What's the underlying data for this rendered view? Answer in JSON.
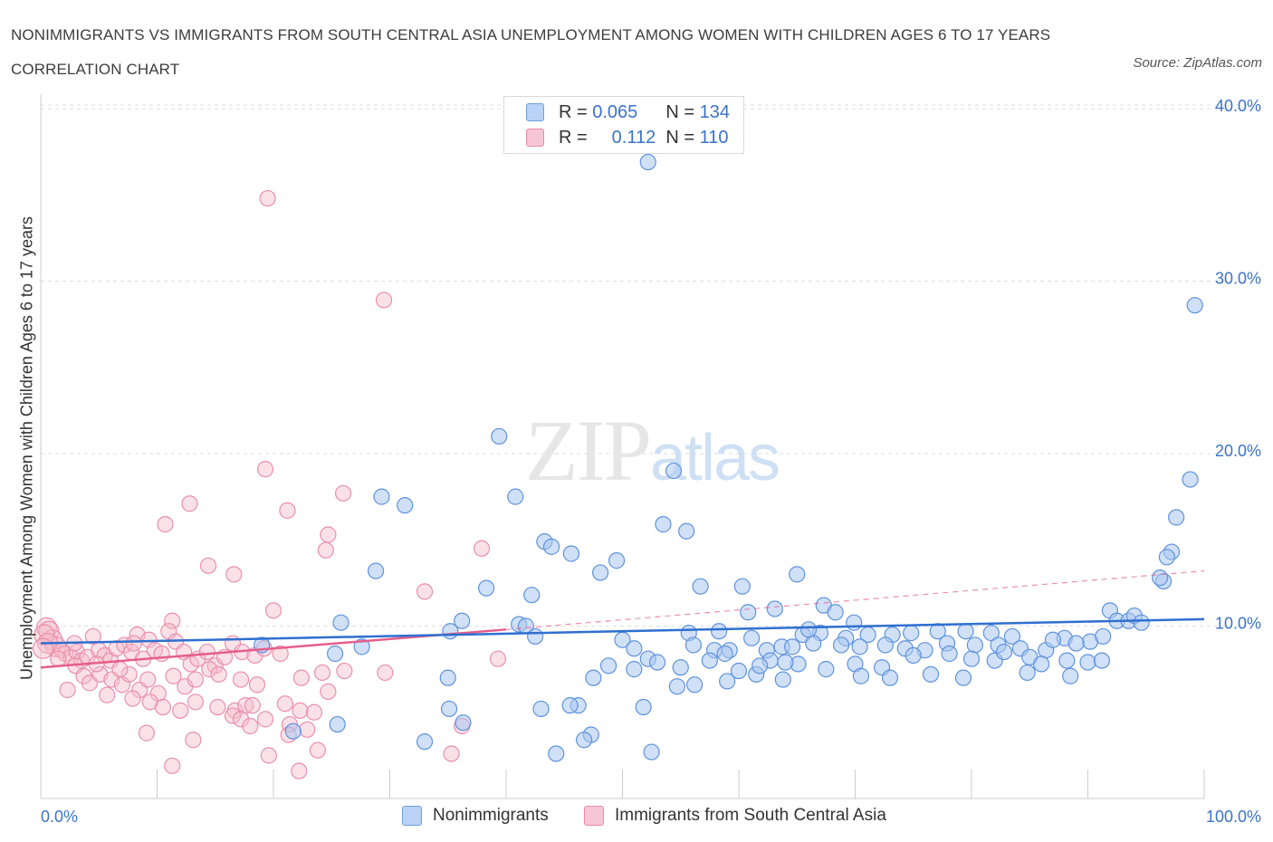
{
  "header": {
    "title": "NONIMMIGRANTS VS IMMIGRANTS FROM SOUTH CENTRAL ASIA UNEMPLOYMENT AMONG WOMEN WITH CHILDREN AGES 6 TO 17 YEARS CORRELATION CHART",
    "source": "Source: ZipAtlas.com"
  },
  "legend": {
    "r_label": "R =",
    "n_label": "N =",
    "rows": [
      {
        "r": "0.065",
        "n": "134"
      },
      {
        "r": "0.112",
        "n": "110"
      }
    ]
  },
  "bottom_legend": [
    "Nonimmigrants",
    "Immigrants from South Central Asia"
  ],
  "colors": {
    "blue_fill": "#a9c6f0",
    "blue_stroke": "#5f93dc",
    "blue_line": "#2f6fd0",
    "pink_fill": "#f5bccd",
    "pink_stroke": "#e98fae",
    "pink_line": "#e45e8c",
    "grid": "#dddddd",
    "accent_text": "#3b73c9"
  },
  "chart_data": {
    "type": "scatter",
    "title": "NONIMMIGRANTS VS IMMIGRANTS FROM SOUTH CENTRAL ASIA UNEMPLOYMENT AMONG WOMEN WITH CHILDREN AGES 6 TO 17 YEARS CORRELATION CHART",
    "xlabel": "",
    "ylabel": "Unemployment Among Women with Children Ages 6 to 17 years",
    "xlim": [
      0,
      100
    ],
    "ylim": [
      0,
      40
    ],
    "x_tick_labels": [
      "0.0%",
      "100.0%"
    ],
    "y_ticks": [
      10,
      20,
      30,
      40
    ],
    "y_tick_labels": [
      "10.0%",
      "20.0%",
      "30.0%",
      "40.0%"
    ],
    "grid": true,
    "legend_position": "top-center",
    "series": [
      {
        "name": "Nonimmigrants",
        "r": 0.065,
        "n": 134,
        "trend": {
          "x": [
            0,
            100
          ],
          "y": [
            9.0,
            10.4
          ]
        },
        "points": [
          [
            52.2,
            36.9
          ],
          [
            99.2,
            28.6
          ],
          [
            39.4,
            21.0
          ],
          [
            54.4,
            19.0
          ],
          [
            98.8,
            18.5
          ],
          [
            40.8,
            17.5
          ],
          [
            29.3,
            17.5
          ],
          [
            31.3,
            17.0
          ],
          [
            97.6,
            16.3
          ],
          [
            53.5,
            15.9
          ],
          [
            55.5,
            15.5
          ],
          [
            97.2,
            14.3
          ],
          [
            96.8,
            14.0
          ],
          [
            43.3,
            14.9
          ],
          [
            43.9,
            14.6
          ],
          [
            45.6,
            14.2
          ],
          [
            49.5,
            13.8
          ],
          [
            28.8,
            13.2
          ],
          [
            48.1,
            13.1
          ],
          [
            65.0,
            13.0
          ],
          [
            56.7,
            12.3
          ],
          [
            60.3,
            12.3
          ],
          [
            96.5,
            12.6
          ],
          [
            96.2,
            12.8
          ],
          [
            38.3,
            12.2
          ],
          [
            42.2,
            11.8
          ],
          [
            63.1,
            11.0
          ],
          [
            60.8,
            10.8
          ],
          [
            67.3,
            11.2
          ],
          [
            68.3,
            10.8
          ],
          [
            91.9,
            10.9
          ],
          [
            92.5,
            10.3
          ],
          [
            93.5,
            10.3
          ],
          [
            94.0,
            10.6
          ],
          [
            94.6,
            10.2
          ],
          [
            36.2,
            10.3
          ],
          [
            41.1,
            10.1
          ],
          [
            41.7,
            10.0
          ],
          [
            25.8,
            10.2
          ],
          [
            35.2,
            9.7
          ],
          [
            42.5,
            9.4
          ],
          [
            55.7,
            9.6
          ],
          [
            58.3,
            9.7
          ],
          [
            61.1,
            9.3
          ],
          [
            65.5,
            9.5
          ],
          [
            67.0,
            9.6
          ],
          [
            69.2,
            9.3
          ],
          [
            71.1,
            9.5
          ],
          [
            73.2,
            9.5
          ],
          [
            74.8,
            9.6
          ],
          [
            77.1,
            9.7
          ],
          [
            79.5,
            9.7
          ],
          [
            81.7,
            9.6
          ],
          [
            83.5,
            9.4
          ],
          [
            88.0,
            9.3
          ],
          [
            90.2,
            9.1
          ],
          [
            91.3,
            9.4
          ],
          [
            50.0,
            9.2
          ],
          [
            51.0,
            8.7
          ],
          [
            56.1,
            8.9
          ],
          [
            57.9,
            8.6
          ],
          [
            59.2,
            8.6
          ],
          [
            62.4,
            8.6
          ],
          [
            63.7,
            8.8
          ],
          [
            64.6,
            8.8
          ],
          [
            66.4,
            9.0
          ],
          [
            68.8,
            8.9
          ],
          [
            70.4,
            8.8
          ],
          [
            72.6,
            8.9
          ],
          [
            74.3,
            8.7
          ],
          [
            76.0,
            8.6
          ],
          [
            77.9,
            9.0
          ],
          [
            80.3,
            8.9
          ],
          [
            82.3,
            8.9
          ],
          [
            84.2,
            8.7
          ],
          [
            86.4,
            8.6
          ],
          [
            89.0,
            9.0
          ],
          [
            19.0,
            8.9
          ],
          [
            27.6,
            8.8
          ],
          [
            25.3,
            8.4
          ],
          [
            52.2,
            8.1
          ],
          [
            53.0,
            7.9
          ],
          [
            55.0,
            7.6
          ],
          [
            57.5,
            8.0
          ],
          [
            60.0,
            7.4
          ],
          [
            62.7,
            8.0
          ],
          [
            65.1,
            7.8
          ],
          [
            67.5,
            7.5
          ],
          [
            70.0,
            7.8
          ],
          [
            72.3,
            7.6
          ],
          [
            75.0,
            8.3
          ],
          [
            78.1,
            8.4
          ],
          [
            80.0,
            8.1
          ],
          [
            82.0,
            8.0
          ],
          [
            85.0,
            8.2
          ],
          [
            86.0,
            7.8
          ],
          [
            88.2,
            8.0
          ],
          [
            90.0,
            7.9
          ],
          [
            91.2,
            8.0
          ],
          [
            48.8,
            7.7
          ],
          [
            47.5,
            7.0
          ],
          [
            59.0,
            6.8
          ],
          [
            61.5,
            7.2
          ],
          [
            63.8,
            6.9
          ],
          [
            70.5,
            7.1
          ],
          [
            73.0,
            7.0
          ],
          [
            76.5,
            7.2
          ],
          [
            79.3,
            7.0
          ],
          [
            84.8,
            7.3
          ],
          [
            88.5,
            7.1
          ],
          [
            46.2,
            5.4
          ],
          [
            51.8,
            5.3
          ],
          [
            35.1,
            5.2
          ],
          [
            43.0,
            5.2
          ],
          [
            45.5,
            5.4
          ],
          [
            36.3,
            4.4
          ],
          [
            25.5,
            4.3
          ],
          [
            21.7,
            3.9
          ],
          [
            47.3,
            3.7
          ],
          [
            46.7,
            3.4
          ],
          [
            33.0,
            3.3
          ],
          [
            52.5,
            2.7
          ],
          [
            44.3,
            2.6
          ],
          [
            35.0,
            7.0
          ],
          [
            51.0,
            7.5
          ],
          [
            54.7,
            6.5
          ],
          [
            56.2,
            6.6
          ],
          [
            66.0,
            9.8
          ],
          [
            69.9,
            10.2
          ],
          [
            82.8,
            8.5
          ],
          [
            87.0,
            9.2
          ],
          [
            58.8,
            8.4
          ],
          [
            61.8,
            7.7
          ],
          [
            64.0,
            7.9
          ]
        ]
      },
      {
        "name": "Immigrants from South Central Asia",
        "r": 0.112,
        "n": 110,
        "trend": {
          "x": [
            0,
            40
          ],
          "y": [
            7.6,
            9.8
          ]
        },
        "trend_extended": {
          "x": [
            40,
            100
          ],
          "y": [
            9.8,
            13.2
          ]
        },
        "points": [
          [
            19.5,
            34.8
          ],
          [
            29.5,
            28.9
          ],
          [
            19.3,
            19.1
          ],
          [
            26.0,
            17.7
          ],
          [
            12.8,
            17.1
          ],
          [
            21.2,
            16.7
          ],
          [
            10.7,
            15.9
          ],
          [
            24.7,
            15.3
          ],
          [
            24.5,
            14.4
          ],
          [
            37.9,
            14.5
          ],
          [
            14.4,
            13.5
          ],
          [
            16.6,
            13.0
          ],
          [
            33.0,
            12.0
          ],
          [
            20.0,
            10.9
          ],
          [
            11.3,
            10.3
          ],
          [
            0.5,
            9.9
          ],
          [
            0.7,
            9.7
          ],
          [
            1.0,
            9.2
          ],
          [
            1.3,
            8.8
          ],
          [
            0.3,
            9.5
          ],
          [
            0.6,
            9.0
          ],
          [
            1.8,
            8.6
          ],
          [
            2.1,
            8.4
          ],
          [
            2.6,
            8.2
          ],
          [
            3.1,
            8.5
          ],
          [
            3.5,
            8.0
          ],
          [
            4.0,
            8.2
          ],
          [
            4.5,
            9.4
          ],
          [
            5.0,
            8.6
          ],
          [
            5.5,
            8.3
          ],
          [
            6.0,
            8.0
          ],
          [
            6.5,
            8.7
          ],
          [
            7.2,
            8.9
          ],
          [
            7.8,
            8.5
          ],
          [
            8.3,
            9.5
          ],
          [
            8.8,
            8.1
          ],
          [
            9.3,
            9.2
          ],
          [
            9.8,
            8.6
          ],
          [
            10.4,
            8.4
          ],
          [
            11.0,
            9.7
          ],
          [
            11.6,
            9.1
          ],
          [
            12.3,
            8.5
          ],
          [
            12.9,
            7.8
          ],
          [
            13.5,
            8.1
          ],
          [
            14.3,
            8.5
          ],
          [
            15.0,
            7.7
          ],
          [
            15.8,
            8.2
          ],
          [
            16.5,
            9.0
          ],
          [
            17.3,
            8.5
          ],
          [
            18.4,
            8.3
          ],
          [
            19.2,
            8.7
          ],
          [
            20.6,
            8.4
          ],
          [
            3.0,
            7.7
          ],
          [
            3.7,
            7.1
          ],
          [
            4.2,
            6.7
          ],
          [
            5.1,
            7.2
          ],
          [
            6.1,
            6.9
          ],
          [
            7.0,
            6.6
          ],
          [
            7.6,
            7.2
          ],
          [
            8.5,
            6.3
          ],
          [
            9.2,
            6.9
          ],
          [
            10.1,
            6.1
          ],
          [
            11.4,
            7.1
          ],
          [
            12.4,
            6.5
          ],
          [
            13.3,
            6.9
          ],
          [
            14.5,
            7.5
          ],
          [
            15.3,
            7.2
          ],
          [
            17.2,
            6.9
          ],
          [
            18.6,
            6.6
          ],
          [
            22.4,
            7.0
          ],
          [
            24.2,
            7.3
          ],
          [
            26.1,
            7.4
          ],
          [
            29.6,
            7.3
          ],
          [
            2.3,
            6.3
          ],
          [
            5.7,
            6.0
          ],
          [
            7.9,
            5.8
          ],
          [
            9.4,
            5.6
          ],
          [
            10.5,
            5.3
          ],
          [
            12.0,
            5.1
          ],
          [
            13.3,
            5.6
          ],
          [
            15.2,
            5.3
          ],
          [
            16.7,
            5.1
          ],
          [
            17.6,
            5.4
          ],
          [
            18.2,
            5.4
          ],
          [
            21.0,
            5.5
          ],
          [
            22.3,
            5.1
          ],
          [
            23.5,
            5.0
          ],
          [
            16.5,
            4.8
          ],
          [
            17.2,
            4.6
          ],
          [
            18.0,
            4.2
          ],
          [
            19.3,
            4.6
          ],
          [
            21.4,
            4.3
          ],
          [
            22.9,
            4.0
          ],
          [
            36.2,
            4.2
          ],
          [
            9.1,
            3.8
          ],
          [
            13.1,
            3.4
          ],
          [
            21.3,
            3.7
          ],
          [
            23.8,
            2.8
          ],
          [
            19.6,
            2.5
          ],
          [
            35.3,
            2.6
          ],
          [
            11.3,
            1.9
          ],
          [
            22.2,
            1.6
          ],
          [
            39.3,
            8.1
          ],
          [
            24.7,
            6.2
          ],
          [
            1.5,
            8.1
          ],
          [
            2.9,
            9.0
          ],
          [
            4.8,
            7.8
          ],
          [
            6.8,
            7.5
          ],
          [
            8.0,
            9.0
          ],
          [
            0.2,
            8.7
          ]
        ]
      }
    ],
    "watermark": "ZIPatlas"
  }
}
